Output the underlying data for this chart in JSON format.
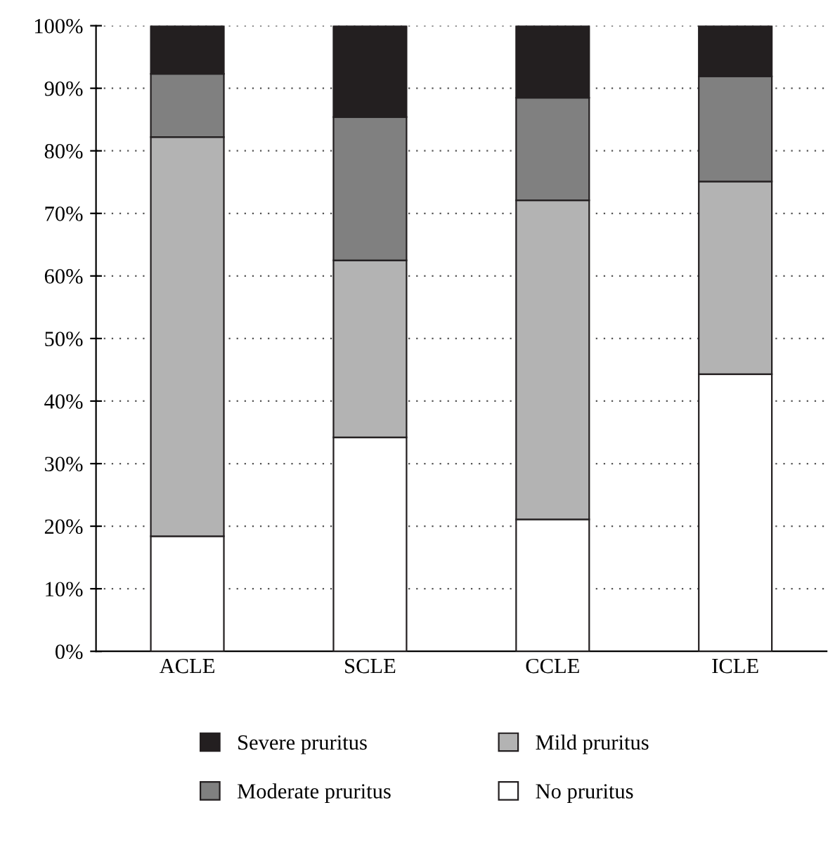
{
  "chart_data": {
    "type": "bar",
    "stacked": true,
    "categories": [
      "ACLE",
      "SCLE",
      "CCLE",
      "ICLE"
    ],
    "series": [
      {
        "name": "No pruritus",
        "color": "#ffffff",
        "values": [
          18.4,
          34.2,
          21.1,
          44.3
        ]
      },
      {
        "name": "Mild pruritus",
        "color": "#b3b3b3",
        "values": [
          63.8,
          28.3,
          51.0,
          30.8
        ]
      },
      {
        "name": "Moderate pruritus",
        "color": "#808080",
        "values": [
          10.1,
          22.9,
          16.4,
          16.8
        ]
      },
      {
        "name": "Severe pruritus",
        "color": "#231f20",
        "values": [
          7.7,
          14.6,
          11.5,
          8.1
        ]
      }
    ],
    "ylim": [
      0,
      100
    ],
    "yticks": [
      {
        "value": 0,
        "label": "0%"
      },
      {
        "value": 10,
        "label": "10%"
      },
      {
        "value": 20,
        "label": "20%"
      },
      {
        "value": 30,
        "label": "30%"
      },
      {
        "value": 40,
        "label": "40%"
      },
      {
        "value": 50,
        "label": "50%"
      },
      {
        "value": 60,
        "label": "60%"
      },
      {
        "value": 70,
        "label": "70%"
      },
      {
        "value": 80,
        "label": "80%"
      },
      {
        "value": 90,
        "label": "90%"
      },
      {
        "value": 100,
        "label": "100%"
      }
    ],
    "grid": "y",
    "legend": "bottom"
  }
}
